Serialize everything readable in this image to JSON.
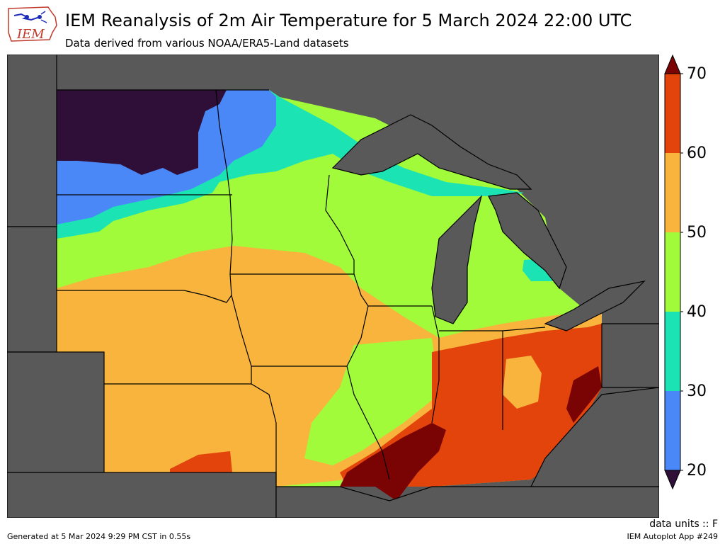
{
  "header": {
    "title": "IEM Reanalysis of 2m Air Temperature for 5 March 2024 22:00 UTC",
    "subtitle": "Data derived from various NOAA/ERA5-Land datasets"
  },
  "logo": {
    "text": "IEM"
  },
  "legend": {
    "ticks": [
      "20",
      "30",
      "40",
      "50",
      "60",
      "70"
    ],
    "bins": [
      {
        "min": 20,
        "max": 30,
        "color": "#4a88f8"
      },
      {
        "min": 30,
        "max": 40,
        "color": "#1ce3b3"
      },
      {
        "min": 40,
        "max": 50,
        "color": "#a2fb3a"
      },
      {
        "min": 50,
        "max": 60,
        "color": "#f8b43c"
      },
      {
        "min": 60,
        "max": 70,
        "color": "#e2440c"
      }
    ],
    "under_color": "#2f0f37",
    "over_color": "#7a0404"
  },
  "units_label": "data units :: F",
  "footer": {
    "generated": "Generated at 5 Mar 2024 9:29 PM CST in 0.55s",
    "app": "IEM Autoplot App #249"
  },
  "colors": {
    "background_land": "#595959",
    "lake": "#595959",
    "borders": "#000000"
  }
}
